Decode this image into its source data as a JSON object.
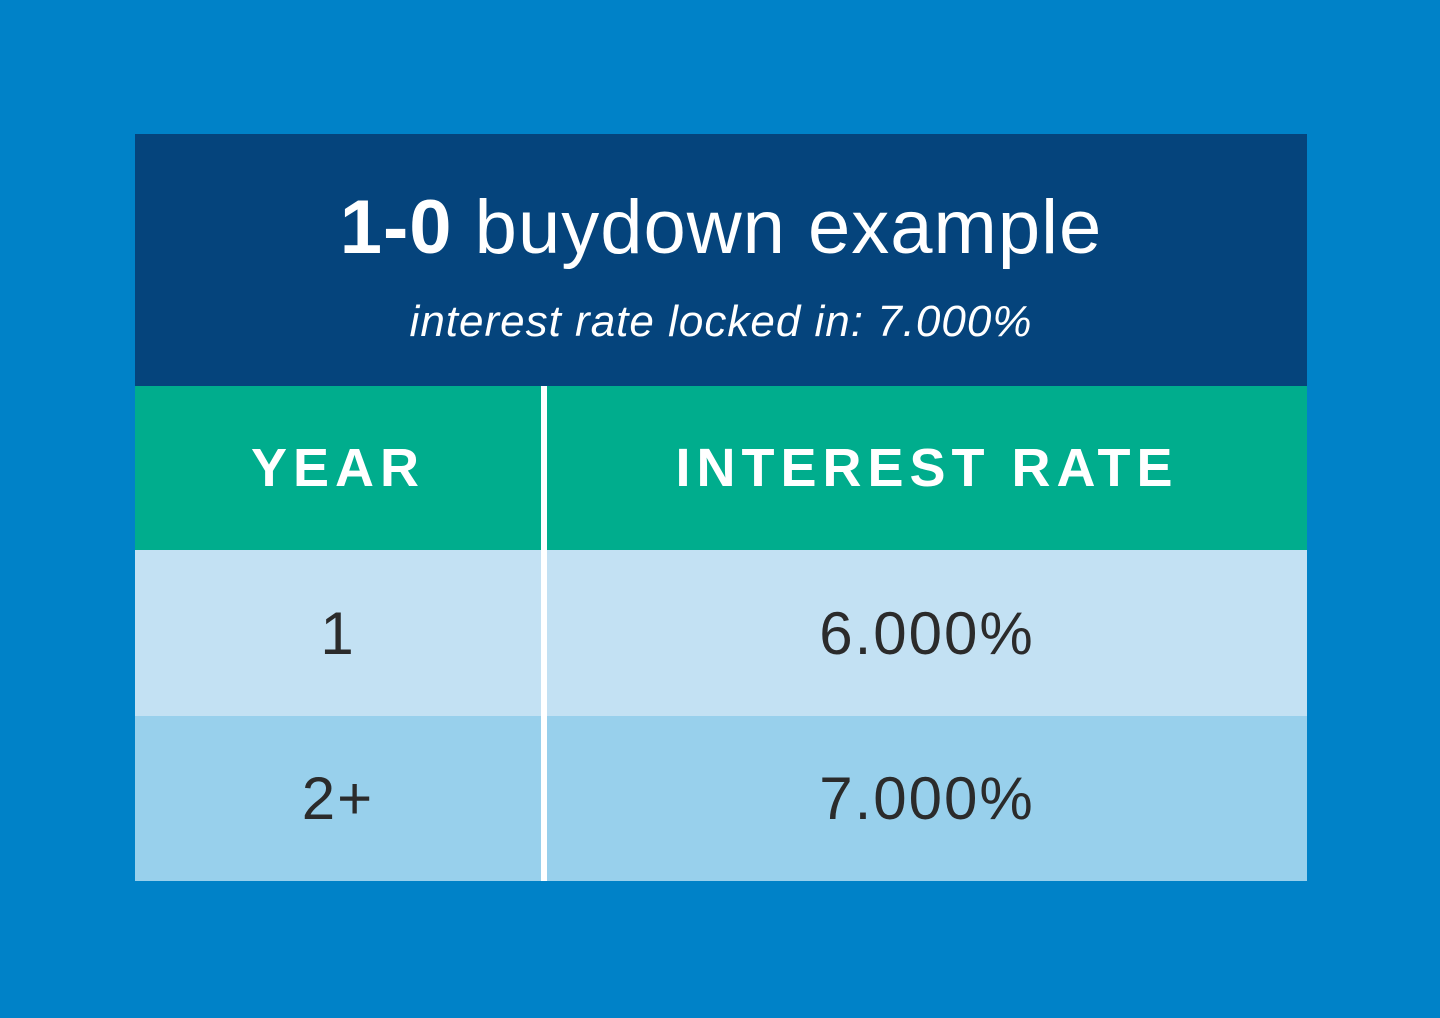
{
  "colors": {
    "page_bg": "#0082c8",
    "header_bg": "#05447c",
    "table_header_bg": "#00ad8d",
    "row_odd_bg": "#c3e1f3",
    "row_even_bg": "#98d0ec",
    "header_text": "#ffffff",
    "cell_text": "#2b2b2b",
    "divider": "#ffffff"
  },
  "header": {
    "title_bold": "1-0",
    "title_rest": "buydown example",
    "subtitle": "interest rate locked in: 7.000%"
  },
  "table": {
    "columns": [
      "YEAR",
      "INTEREST RATE"
    ],
    "rows": [
      {
        "year": "1",
        "rate": "6.000%"
      },
      {
        "year": "2+",
        "rate": "7.000%"
      }
    ]
  },
  "chart_data": {
    "type": "table",
    "title": "1-0 buydown example",
    "subtitle": "interest rate locked in: 7.000%",
    "columns": [
      "YEAR",
      "INTEREST RATE"
    ],
    "rows": [
      [
        "1",
        "6.000%"
      ],
      [
        "2+",
        "7.000%"
      ]
    ],
    "locked_rate_percent": 7.0,
    "year_1_rate_percent": 6.0,
    "year_2_plus_rate_percent": 7.0
  }
}
